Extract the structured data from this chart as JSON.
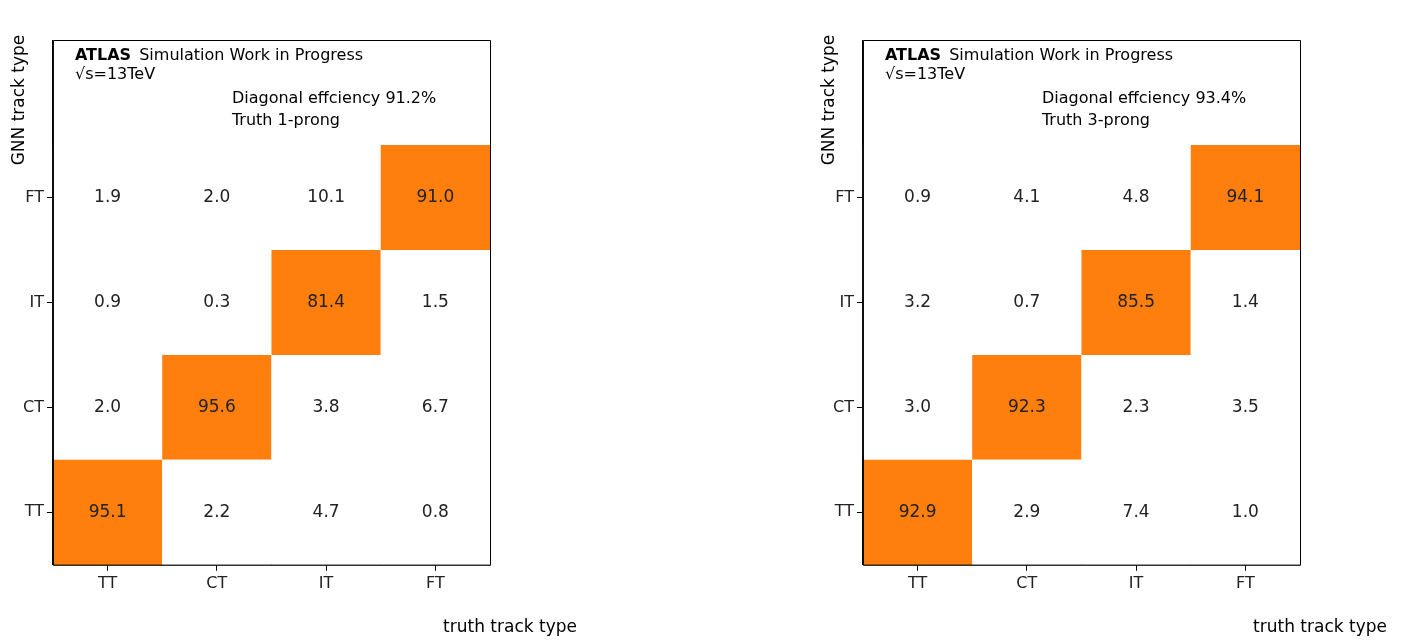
{
  "chart_data": [
    {
      "type": "heatmap",
      "xlabel": "truth track type",
      "ylabel": "GNN track type",
      "categories": [
        "TT",
        "CT",
        "IT",
        "FT"
      ],
      "y_categories": [
        "FT",
        "IT",
        "CT",
        "TT"
      ],
      "cells": [
        [
          1.9,
          2.0,
          10.1,
          91.0
        ],
        [
          0.9,
          0.3,
          81.4,
          1.5
        ],
        [
          2.0,
          95.6,
          3.8,
          6.7
        ],
        [
          95.1,
          2.2,
          4.7,
          0.8
        ]
      ],
      "colors": [
        [
          "#ffffff",
          "#ffffff",
          "#ffffff",
          "#ff7f0e"
        ],
        [
          "#ffffff",
          "#ffffff",
          "#ff7f0e",
          "#ffffff"
        ],
        [
          "#ffffff",
          "#ff7f0e",
          "#ffffff",
          "#ffffff"
        ],
        [
          "#ff7f0e",
          "#ffffff",
          "#ffffff",
          "#ffffff"
        ]
      ],
      "cell_labels": [
        [
          "1.9",
          "2.0",
          "10.1",
          "91.0"
        ],
        [
          "0.9",
          "0.3",
          "81.4",
          "1.5"
        ],
        [
          "2.0",
          "95.6",
          "3.8",
          "6.7"
        ],
        [
          "95.1",
          "2.2",
          "4.7",
          "0.8"
        ]
      ],
      "data_labels": true,
      "grid": false,
      "annotations": [
        "ATLAS Simulation Work in Progress",
        "√s=13TeV",
        "Diagonal effciency 91.2%",
        "Truth 1-prong"
      ]
    },
    {
      "type": "heatmap",
      "xlabel": "truth track type",
      "ylabel": "GNN track type",
      "categories": [
        "TT",
        "CT",
        "IT",
        "FT"
      ],
      "y_categories": [
        "FT",
        "IT",
        "CT",
        "TT"
      ],
      "cells": [
        [
          0.9,
          4.1,
          4.8,
          94.1
        ],
        [
          3.2,
          0.7,
          85.5,
          1.4
        ],
        [
          3.0,
          92.3,
          2.3,
          3.5
        ],
        [
          92.9,
          2.9,
          7.4,
          1.0
        ]
      ],
      "colors": [
        [
          "#ffffff",
          "#ffffff",
          "#ffffff",
          "#ff7f0e"
        ],
        [
          "#ffffff",
          "#ffffff",
          "#ff7f0e",
          "#ffffff"
        ],
        [
          "#ffffff",
          "#ff7f0e",
          "#ffffff",
          "#ffffff"
        ],
        [
          "#ff7f0e",
          "#ffffff",
          "#ffffff",
          "#ffffff"
        ]
      ],
      "cell_labels": [
        [
          "0.9",
          "4.1",
          "4.8",
          "94.1"
        ],
        [
          "3.2",
          "0.7",
          "85.5",
          "1.4"
        ],
        [
          "3.0",
          "92.3",
          "2.3",
          "3.5"
        ],
        [
          "92.9",
          "2.9",
          "7.4",
          "1.0"
        ]
      ],
      "data_labels": true,
      "grid": false,
      "annotations": [
        "ATLAS Simulation Work in Progress",
        "√s=13TeV",
        "Diagonal effciency 93.4%",
        "Truth 3-prong"
      ]
    }
  ]
}
